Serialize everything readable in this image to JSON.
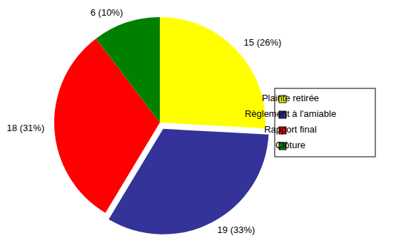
{
  "chart_data": {
    "type": "pie",
    "categories": [
      "Plainte retirée",
      "Règlement à l'amiable",
      "Rapport final",
      "Clôture"
    ],
    "values": [
      15,
      19,
      18,
      6
    ],
    "value_labels": [
      "15 (26%)",
      "19 (33%)",
      "18 (31%)",
      "6 (10%)"
    ],
    "colors": [
      "#ffff00",
      "#333399",
      "#ff0000",
      "#008000"
    ],
    "data_labels": true,
    "legend": "right"
  }
}
